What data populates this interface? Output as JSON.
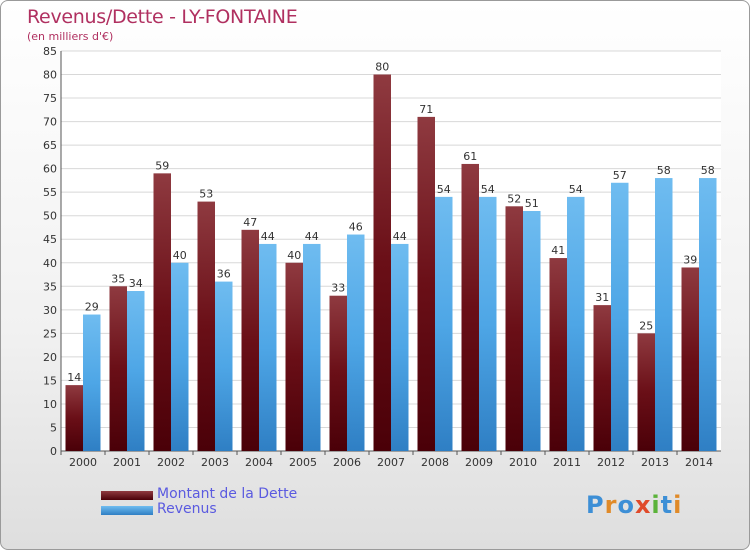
{
  "chart_data": {
    "type": "bar",
    "title": "Revenus/Dette - LY-FONTAINE",
    "subtitle": "(en milliers d'€)",
    "categories": [
      "2000",
      "2001",
      "2002",
      "2003",
      "2004",
      "2005",
      "2006",
      "2007",
      "2008",
      "2009",
      "2010",
      "2011",
      "2012",
      "2013",
      "2014"
    ],
    "series": [
      {
        "name": "Montant de la Dette",
        "color": "#7a1e24",
        "values": [
          14,
          35,
          59,
          53,
          47,
          40,
          33,
          80,
          71,
          61,
          52,
          41,
          31,
          25,
          39
        ]
      },
      {
        "name": "Revenus",
        "color": "#4ea6e6",
        "values": [
          29,
          34,
          40,
          36,
          44,
          44,
          46,
          44,
          54,
          54,
          51,
          54,
          57,
          58,
          58
        ]
      }
    ],
    "ylim": [
      0,
      85
    ],
    "yticks": [
      0,
      5,
      10,
      15,
      20,
      25,
      30,
      35,
      40,
      45,
      50,
      55,
      60,
      65,
      70,
      75,
      80,
      85
    ],
    "xlabel": "",
    "ylabel": "",
    "grid": true,
    "legend": "bottom-left"
  },
  "logo": {
    "letters": [
      {
        "ch": "P",
        "color": "#3d8fd6"
      },
      {
        "ch": "r",
        "color": "#e08a28"
      },
      {
        "ch": "o",
        "color": "#3d8fd6"
      },
      {
        "ch": "x",
        "color": "#e04a2a"
      },
      {
        "ch": "i",
        "color": "#5bb33a"
      },
      {
        "ch": "t",
        "color": "#3d8fd6"
      },
      {
        "ch": "i",
        "color": "#e08a28"
      }
    ]
  }
}
